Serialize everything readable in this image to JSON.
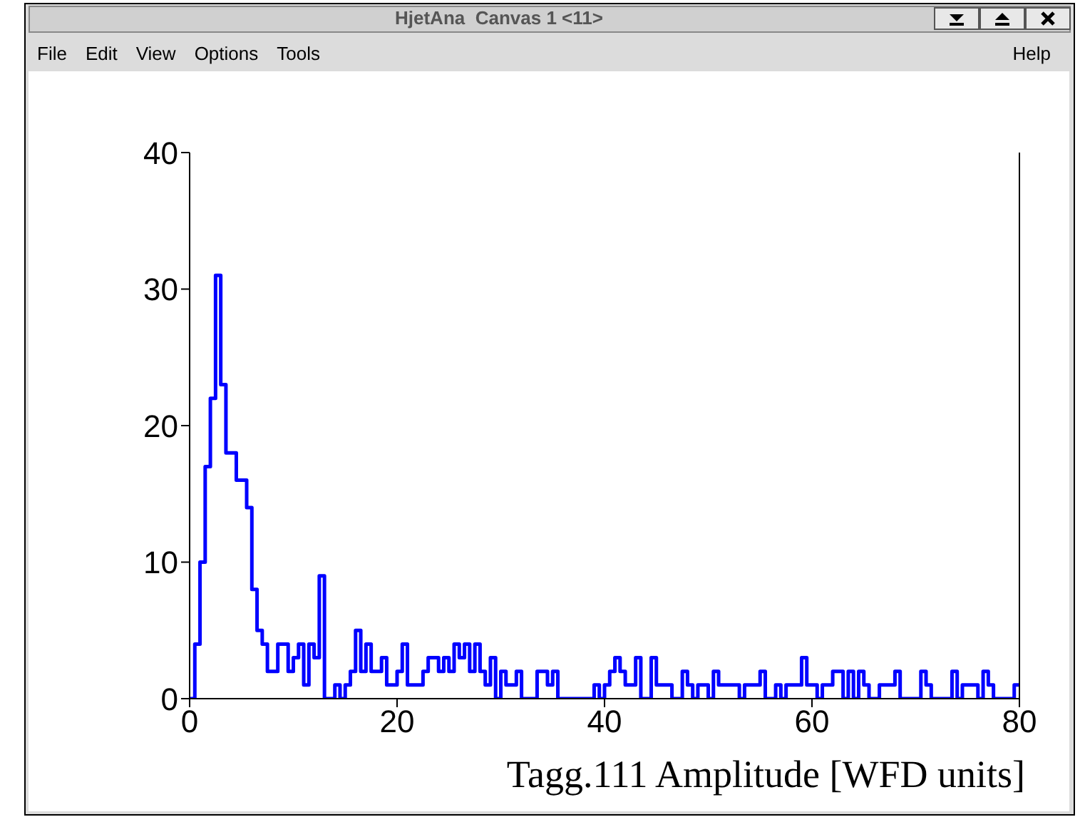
{
  "chart_data": {
    "type": "histogram",
    "annotations": [
      "HjetAna  Canvas 1 <11>",
      "File",
      "Edit",
      "View",
      "Options",
      "Tools",
      "Help"
    ],
    "xlabel": "Tagg.111 Amplitude [WFD units]",
    "bins": [
      0,
      0.5,
      1,
      1.5,
      2,
      2.5,
      3,
      3.5,
      4,
      4.5,
      5,
      5.5,
      6,
      6.5,
      7,
      7.5,
      8,
      8.5,
      9,
      9.5,
      10,
      10.5,
      11,
      11.5,
      12,
      12.5,
      13,
      13.5,
      14,
      14.5,
      15,
      15.5,
      16,
      16.5,
      17,
      17.5,
      18,
      18.5,
      19,
      19.5,
      20,
      20.5,
      21,
      21.5,
      22,
      22.5,
      23,
      23.5,
      24,
      24.5,
      25,
      25.5,
      26,
      26.5,
      27,
      27.5,
      28,
      28.5,
      29,
      29.5,
      30,
      30.5,
      31,
      31.5,
      32,
      32.5,
      33,
      33.5,
      34,
      34.5,
      35,
      35.5,
      36,
      36.5,
      37,
      37.5,
      38,
      38.5,
      39,
      39.5,
      40,
      40.5,
      41,
      41.5,
      42,
      42.5,
      43,
      43.5,
      44,
      44.5,
      45,
      45.5,
      46,
      46.5,
      47,
      47.5,
      48,
      48.5,
      49,
      49.5,
      50,
      50.5,
      51,
      51.5,
      52,
      52.5,
      53,
      53.5,
      54,
      54.5,
      55,
      55.5,
      56,
      56.5,
      57,
      57.5,
      58,
      58.5,
      59,
      59.5,
      60,
      60.5,
      61,
      61.5,
      62,
      62.5,
      63,
      63.5,
      64,
      64.5,
      65,
      65.5,
      66,
      66.5,
      67,
      67.5,
      68,
      68.5,
      69,
      69.5,
      70,
      70.5,
      71,
      71.5,
      72,
      72.5,
      73,
      73.5,
      74,
      74.5,
      75,
      75.5,
      76,
      76.5,
      77,
      77.5,
      78,
      78.5,
      79,
      79.5,
      80
    ],
    "values": [
      0,
      4,
      10,
      17,
      22,
      31,
      23,
      18,
      18,
      16,
      16,
      14,
      8,
      5,
      4,
      2,
      2,
      4,
      4,
      2,
      3,
      4,
      1,
      4,
      3,
      9,
      0,
      0,
      1,
      0,
      1,
      2,
      5,
      2,
      4,
      2,
      2,
      3,
      1,
      1,
      2,
      4,
      1,
      1,
      1,
      2,
      3,
      3,
      2,
      3,
      2,
      4,
      3,
      4,
      2,
      4,
      2,
      1,
      3,
      0,
      2,
      1,
      1,
      2,
      0,
      0,
      0,
      2,
      2,
      1,
      2,
      0,
      0,
      0,
      0,
      0,
      0,
      0,
      1,
      0,
      1,
      2,
      3,
      2,
      1,
      1,
      3,
      0,
      0,
      3,
      1,
      1,
      1,
      0,
      0,
      2,
      1,
      0,
      1,
      1,
      0,
      2,
      1,
      1,
      1,
      1,
      0,
      1,
      1,
      1,
      2,
      0,
      0,
      1,
      0,
      1,
      1,
      1,
      3,
      1,
      1,
      0,
      1,
      1,
      2,
      2,
      0,
      2,
      0,
      2,
      1,
      0,
      0,
      1,
      1,
      1,
      2,
      0,
      0,
      0,
      0,
      2,
      1,
      0,
      0,
      0,
      0,
      2,
      0,
      1,
      1,
      1,
      0,
      2,
      1,
      0,
      0,
      0,
      0,
      1
    ],
    "color": "#0000ff",
    "xlim": [
      0,
      80
    ],
    "xticks": [
      0,
      20,
      40,
      60,
      80
    ],
    "ylim": [
      0,
      40
    ],
    "yticks": [
      0,
      10,
      20,
      30,
      40
    ],
    "grid": false,
    "legend": false
  }
}
